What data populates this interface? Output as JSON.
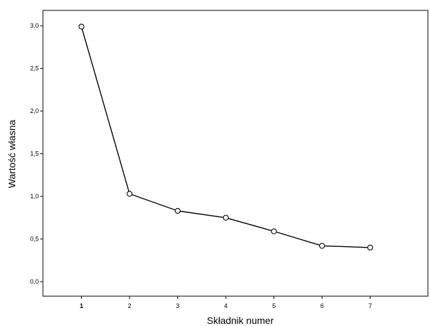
{
  "chart_data": {
    "type": "line",
    "title": "",
    "xlabel": "Składnik numer",
    "ylabel": "Wartość własna",
    "x": [
      1,
      2,
      3,
      4,
      5,
      6,
      7
    ],
    "x_tick_labels": [
      "1",
      "2",
      "3",
      "4",
      "5",
      "6",
      "7"
    ],
    "y_ticks": [
      0.0,
      0.5,
      1.0,
      1.5,
      2.0,
      2.5,
      3.0
    ],
    "y_tick_labels": [
      "0,0",
      "0,5",
      "1,0",
      "1,5",
      "2,0",
      "2,5",
      "3,0"
    ],
    "xlim": [
      0.2,
      8.2
    ],
    "ylim": [
      -0.17,
      3.18
    ],
    "grid": false,
    "marker": "open-circle",
    "series": [
      {
        "values": [
          2.99,
          1.03,
          0.83,
          0.75,
          0.59,
          0.42,
          0.4
        ]
      }
    ],
    "colors": {
      "line": "#000000",
      "marker_stroke": "#000000",
      "marker_fill": "#ffffff",
      "axis": "#000000",
      "background": "#ffffff"
    }
  }
}
